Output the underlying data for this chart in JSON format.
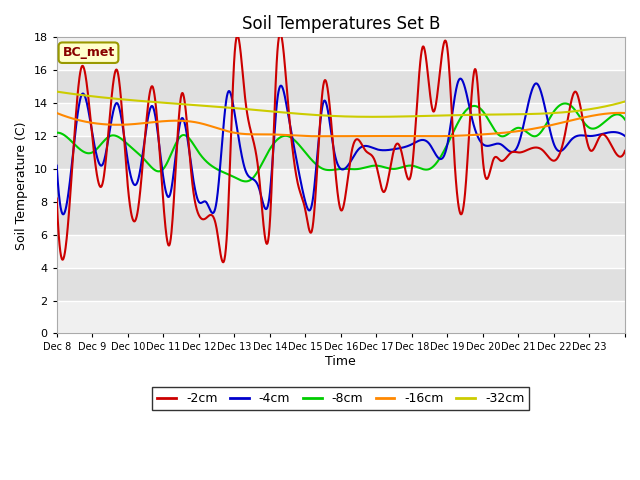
{
  "title": "Soil Temperatures Set B",
  "xlabel": "Time",
  "ylabel": "Soil Temperature (C)",
  "ylim": [
    0,
    18
  ],
  "yticks": [
    0,
    2,
    4,
    6,
    8,
    10,
    12,
    14,
    16,
    18
  ],
  "xtick_labels": [
    "Dec 8",
    "Dec 9",
    "Dec 10",
    "Dec 11",
    "Dec 12",
    "Dec 13",
    "Dec 14",
    "Dec 15",
    "Dec 16",
    "Dec 17",
    "Dec 18",
    "Dec 19",
    "Dec 20",
    "Dec 21",
    "Dec 22",
    "Dec 23"
  ],
  "annotation_text": "BC_met",
  "legend_labels": [
    "-2cm",
    "-4cm",
    "-8cm",
    "-16cm",
    "-32cm"
  ],
  "colors": {
    "-2cm": "#cc0000",
    "-4cm": "#0000cc",
    "-8cm": "#00cc00",
    "-16cm": "#ff8800",
    "-32cm": "#cccc00"
  },
  "background_color": "#ffffff",
  "plot_bg_light": "#f0f0f0",
  "plot_bg_dark": "#e0e0e0",
  "grid_color": "#ffffff",
  "annotation_bg": "#ffffcc",
  "annotation_border": "#999900",
  "annotation_text_color": "#880000"
}
